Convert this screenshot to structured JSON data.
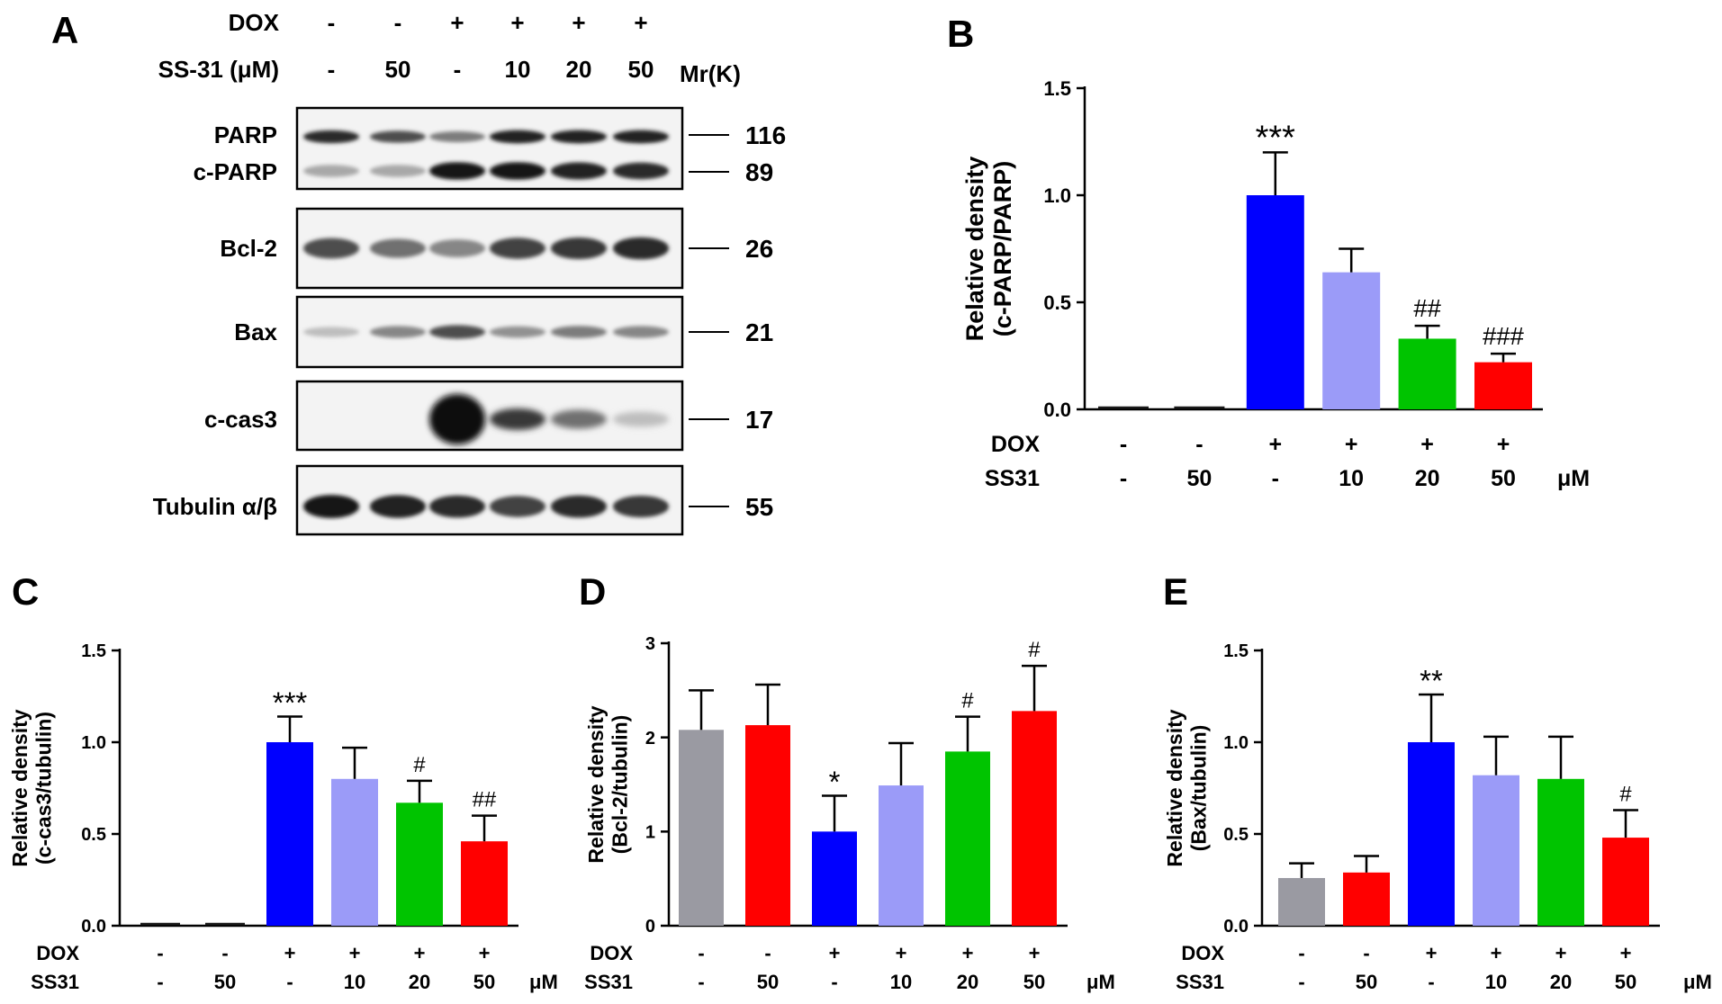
{
  "panel_letters": [
    "A",
    "B",
    "C",
    "D",
    "E"
  ],
  "blot": {
    "panel": "A",
    "treatments": {
      "dox_label": "DOX",
      "dox": [
        "-",
        "-",
        "+",
        "+",
        "+",
        "+"
      ],
      "ss31_label": "SS-31 (μM)",
      "ss31": [
        "-",
        "50",
        "-",
        "10",
        "20",
        "50"
      ],
      "mr_label": "Mr(K)"
    },
    "bands": [
      {
        "name": "PARP",
        "mr": "116"
      },
      {
        "name": "c-PARP",
        "mr": "89"
      },
      {
        "name": "Bcl-2",
        "mr": "26"
      },
      {
        "name": "Bax",
        "mr": "21"
      },
      {
        "name": "c-cas3",
        "mr": "17"
      },
      {
        "name": "Tubulin α/β",
        "mr": "55"
      }
    ],
    "band_intensity": {
      "PARP": [
        0.85,
        0.7,
        0.5,
        0.9,
        0.9,
        0.9
      ],
      "c-PARP": [
        0.3,
        0.3,
        0.95,
        0.95,
        0.9,
        0.85
      ],
      "Bcl-2": [
        0.7,
        0.55,
        0.45,
        0.75,
        0.8,
        0.85
      ],
      "Bax": [
        0.2,
        0.45,
        0.7,
        0.4,
        0.5,
        0.45
      ],
      "c-cas3": [
        0.0,
        0.0,
        1.0,
        0.8,
        0.55,
        0.2
      ],
      "Tubulin α/β": [
        0.95,
        0.9,
        0.85,
        0.75,
        0.85,
        0.8
      ]
    }
  },
  "chart_data": [
    {
      "panel": "B",
      "type": "bar",
      "ylabel": [
        "Relative density",
        "(c-PARP/PARP)"
      ],
      "ylim": [
        0,
        1.5
      ],
      "yticks": [
        "0.0",
        "0.5",
        "1.0",
        "1.5"
      ],
      "values": [
        0.01,
        0.01,
        1.0,
        0.64,
        0.33,
        0.22
      ],
      "errors": [
        0.0,
        0.0,
        0.2,
        0.11,
        0.06,
        0.04
      ],
      "colors": [
        "#1a1a1a",
        "#1a1a1a",
        "#0000ff",
        "#9b9bf8",
        "#00c400",
        "#ff0000"
      ],
      "annotations": [
        "",
        "",
        "***",
        "",
        "##",
        "###"
      ],
      "dox_label": "DOX",
      "dox": [
        "-",
        "-",
        "+",
        "+",
        "+",
        "+"
      ],
      "ss31_label": "SS31",
      "ss31": [
        "-",
        "50",
        "-",
        "10",
        "20",
        "50"
      ],
      "unit": "μM"
    },
    {
      "panel": "C",
      "type": "bar",
      "ylabel": [
        "Relative density",
        "(c-cas3/tubulin)"
      ],
      "ylim": [
        0,
        1.5
      ],
      "yticks": [
        "0.0",
        "0.5",
        "1.0",
        "1.5"
      ],
      "values": [
        0.01,
        0.01,
        1.0,
        0.8,
        0.67,
        0.46
      ],
      "errors": [
        0.0,
        0.0,
        0.14,
        0.17,
        0.12,
        0.14
      ],
      "colors": [
        "#1a1a1a",
        "#1a1a1a",
        "#0000ff",
        "#9b9bf8",
        "#00c400",
        "#ff0000"
      ],
      "annotations": [
        "",
        "",
        "***",
        "",
        "#",
        "##"
      ],
      "dox_label": "DOX",
      "dox": [
        "-",
        "-",
        "+",
        "+",
        "+",
        "+"
      ],
      "ss31_label": "SS31",
      "ss31": [
        "-",
        "50",
        "-",
        "10",
        "20",
        "50"
      ],
      "unit": "μM"
    },
    {
      "panel": "D",
      "type": "bar",
      "ylabel": [
        "Relative density",
        "(Bcl-2/tubulin)"
      ],
      "ylim": [
        0,
        3
      ],
      "yticks": [
        "0",
        "1",
        "2",
        "3"
      ],
      "values": [
        2.08,
        2.13,
        1.0,
        1.49,
        1.85,
        2.28
      ],
      "errors": [
        0.42,
        0.43,
        0.38,
        0.45,
        0.37,
        0.48
      ],
      "colors": [
        "#9a9aa2",
        "#ff0000",
        "#0000ff",
        "#9b9bf8",
        "#00c400",
        "#ff0000"
      ],
      "annotations": [
        "",
        "",
        "*",
        "",
        "#",
        "#"
      ],
      "dox_label": "DOX",
      "dox": [
        "-",
        "-",
        "+",
        "+",
        "+",
        "+"
      ],
      "ss31_label": "SS31",
      "ss31": [
        "-",
        "50",
        "-",
        "10",
        "20",
        "50"
      ],
      "unit": "μM"
    },
    {
      "panel": "E",
      "type": "bar",
      "ylabel": [
        "Relative density",
        "(Bax/tubulin)"
      ],
      "ylim": [
        0,
        1.5
      ],
      "yticks": [
        "0.0",
        "0.5",
        "1.0",
        "1.5"
      ],
      "values": [
        0.26,
        0.29,
        1.0,
        0.82,
        0.8,
        0.48
      ],
      "errors": [
        0.08,
        0.09,
        0.26,
        0.21,
        0.23,
        0.15
      ],
      "colors": [
        "#9a9aa2",
        "#ff0000",
        "#0000ff",
        "#9b9bf8",
        "#00c400",
        "#ff0000"
      ],
      "annotations": [
        "",
        "",
        "**",
        "",
        "",
        "#"
      ],
      "dox_label": "DOX",
      "dox": [
        "-",
        "-",
        "+",
        "+",
        "+",
        "+"
      ],
      "ss31_label": "SS31",
      "ss31": [
        "-",
        "50",
        "-",
        "10",
        "20",
        "50"
      ],
      "unit": "μM"
    }
  ]
}
